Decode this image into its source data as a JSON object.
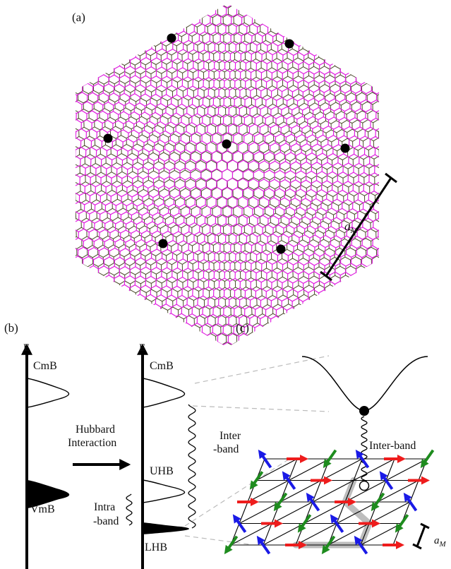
{
  "panel_a": {
    "label": "(a)",
    "length_label": "a",
    "length_sub": "M",
    "colors": {
      "layer1": "#e020e0",
      "layer2": "#4a4a2a",
      "dot": "#000000"
    }
  },
  "panel_b": {
    "label": "(b)",
    "axis_label": "E",
    "left": {
      "top_band": "CmB",
      "bottom_band": "VmB"
    },
    "arrow_text": [
      "Hubbard",
      "Interaction"
    ],
    "right": {
      "top_band": "CmB",
      "upper_hubbard": "UHB",
      "lower_hubbard": "LHB"
    },
    "inter_band": [
      "Inter",
      "-band"
    ],
    "intra_band": [
      "Intra",
      "-band"
    ]
  },
  "panel_c": {
    "label": "(c)",
    "inter_band": "Inter-band",
    "length_label": "a",
    "length_sub": "M",
    "colors": {
      "red": "#ee1c1c",
      "green": "#1e8c1e",
      "blue": "#1a1ae6",
      "path": "#bdbdbd"
    }
  }
}
